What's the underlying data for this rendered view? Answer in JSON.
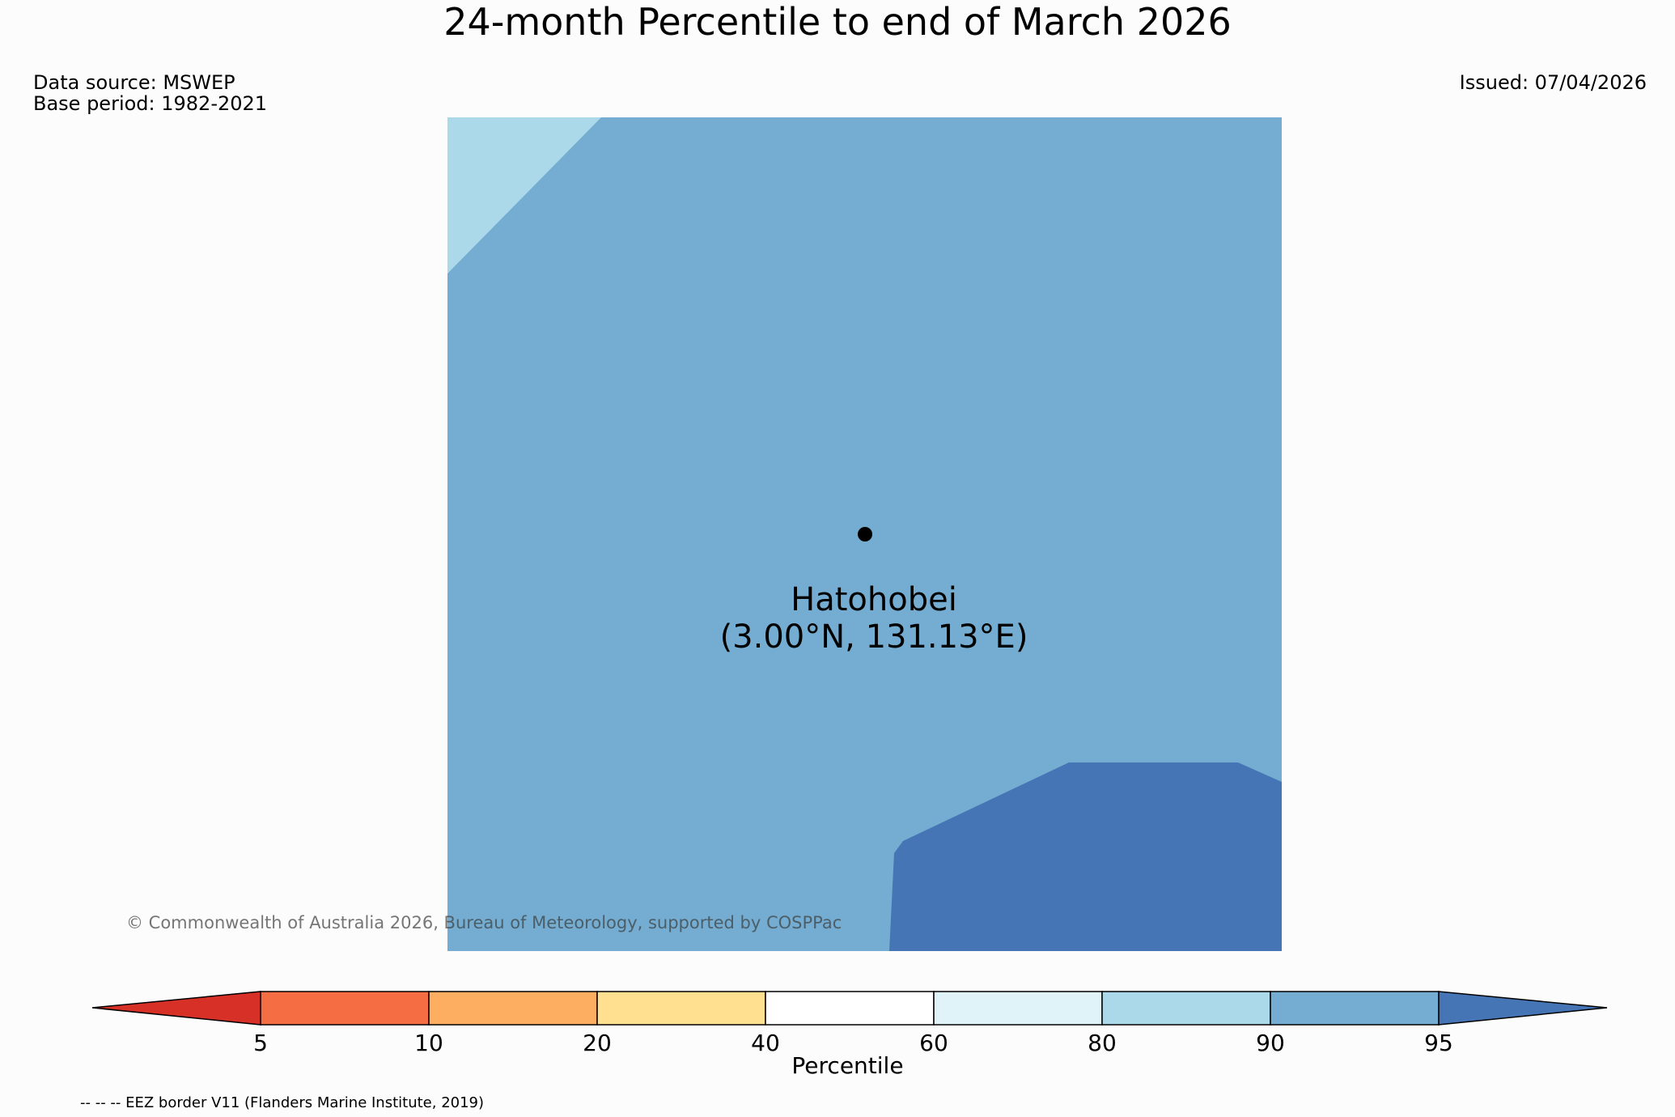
{
  "title": "24-month Percentile to end of March 2026",
  "data_source": "Data source: MSWEP",
  "base_period": "Base period: 1982-2021",
  "issued": "Issued: 07/04/2026",
  "location": {
    "name": "Hatohobei",
    "coords": "(3.00°N, 131.13°E)",
    "lat": 3.0,
    "lon": 131.13
  },
  "map_regions": [
    {
      "name": "80-90 percentile zone (northwest corner)",
      "color": "#abd9e9"
    },
    {
      "name": "90-95 percentile zone (main area)",
      "color": "#74add1"
    },
    {
      "name": "above 95 percentile zone (southeast)",
      "color": "#4575b4"
    }
  ],
  "copyright": "© Commonwealth of Australia 2026, Bureau of Meteorology, supported by COSPPac",
  "colorbar": {
    "label": "Percentile",
    "ticks": [
      "5",
      "10",
      "20",
      "40",
      "60",
      "80",
      "90",
      "95"
    ],
    "colors": {
      "below_5": "#d73027",
      "b5_10": "#f46d43",
      "b10_20": "#fdae61",
      "b20_40": "#fee090",
      "b40_60": "#ffffff",
      "b60_80": "#e0f3f8",
      "b80_90": "#abd9e9",
      "b90_95": "#74add1",
      "above_95": "#4575b4"
    }
  },
  "footnote": "-- -- -- EEZ border V11 (Flanders Marine Institute, 2019)"
}
